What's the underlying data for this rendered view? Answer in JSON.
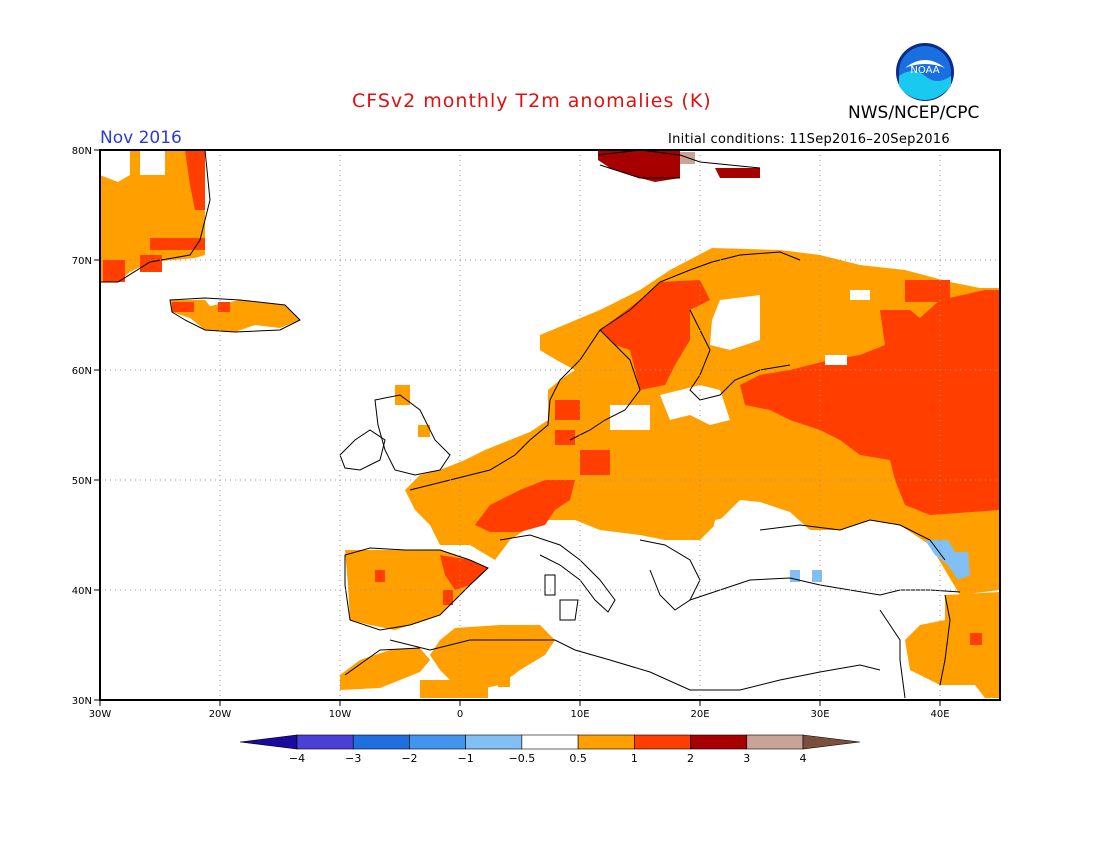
{
  "header": {
    "title": "CFSv2 monthly T2m anomalies (K)",
    "org": "NWS/NCEP/CPC",
    "month": "Nov 2016",
    "initial_conditions": "Initial conditions: 11Sep2016–20Sep2016",
    "logo_text": "NOAA"
  },
  "axes": {
    "lat_labels": [
      "80N",
      "70N",
      "60N",
      "50N",
      "40N",
      "30N"
    ],
    "lon_labels": [
      "30W",
      "20W",
      "10W",
      "0",
      "10E",
      "20E",
      "30E",
      "40E"
    ]
  },
  "colorbar": {
    "labels": [
      "−4",
      "−3",
      "−2",
      "−1",
      "−0.5",
      "0.5",
      "1",
      "2",
      "3",
      "4"
    ],
    "colors": [
      "#1a0b9e",
      "#4a3fd6",
      "#1f6fe0",
      "#3f95f0",
      "#82bff4",
      "#ffffff",
      "#ff9f00",
      "#ff3e00",
      "#a60000",
      "#c9a396",
      "#7a4f3c"
    ]
  },
  "colors": {
    "anom_0p5_1": "#ff9f00",
    "anom_1_2": "#ff3e00",
    "anom_2_3": "#a60000",
    "anom_3_4": "#c9a396",
    "anom_neg_0p5_neg_1": "#82bff4"
  }
}
